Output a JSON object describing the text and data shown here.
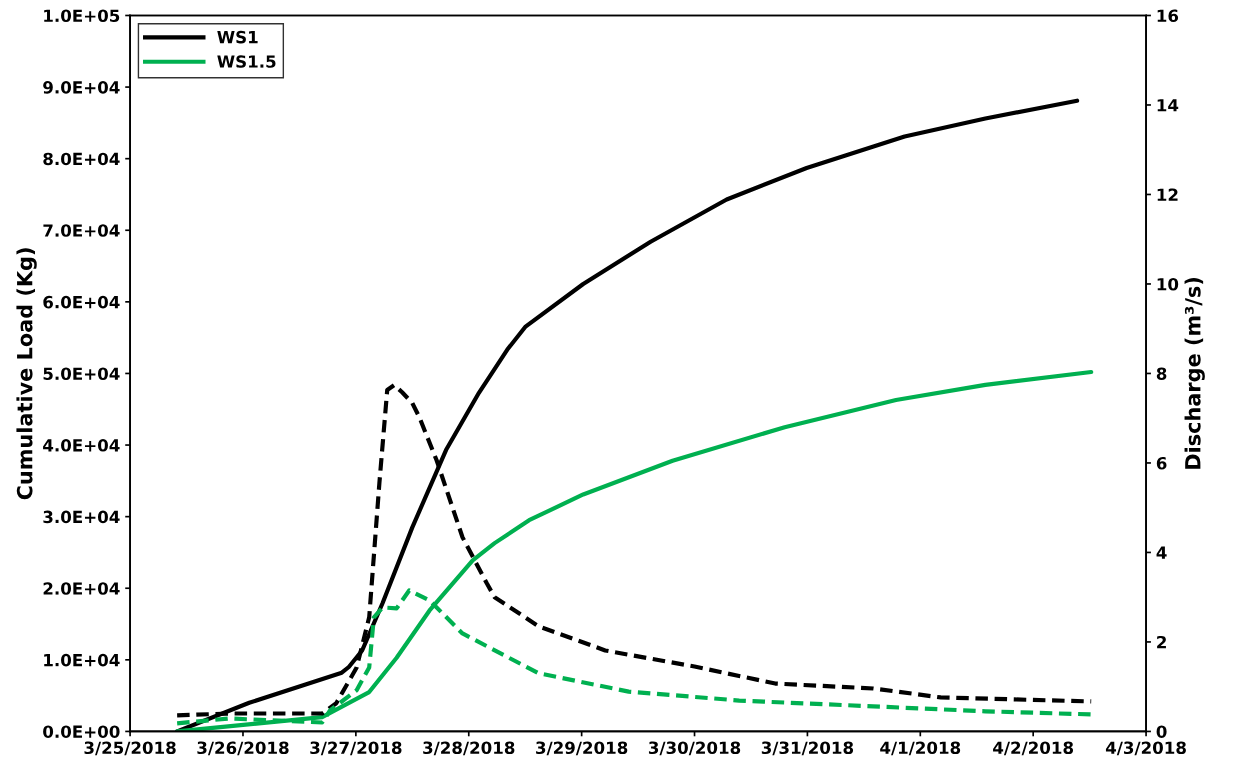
{
  "chart_data": {
    "type": "line",
    "xlabel": null,
    "ylabel": "Cumulative Load (Kg)",
    "y2label": "Discharge (m³/s)",
    "xlim": [
      "2018-03-25",
      "2018-04-03"
    ],
    "xticks": [
      {
        "value": "2018-03-25",
        "label": "3/25/2018"
      },
      {
        "value": "2018-03-26",
        "label": "3/26/2018"
      },
      {
        "value": "2018-03-27",
        "label": "3/27/2018"
      },
      {
        "value": "2018-03-28",
        "label": "3/28/2018"
      },
      {
        "value": "2018-03-29",
        "label": "3/29/2018"
      },
      {
        "value": "2018-03-30",
        "label": "3/30/2018"
      },
      {
        "value": "2018-03-31",
        "label": "3/31/2018"
      },
      {
        "value": "2018-04-01",
        "label": "4/1/2018"
      },
      {
        "value": "2018-04-02",
        "label": "4/2/2018"
      },
      {
        "value": "2018-04-03",
        "label": "4/3/2018"
      }
    ],
    "ylim": [
      0,
      100000
    ],
    "yticks": [
      {
        "value": 0,
        "label": "0.0E+00"
      },
      {
        "value": 10000,
        "label": "1.0E+04"
      },
      {
        "value": 20000,
        "label": "2.0E+04"
      },
      {
        "value": 30000,
        "label": "3.0E+04"
      },
      {
        "value": 40000,
        "label": "4.0E+04"
      },
      {
        "value": 50000,
        "label": "5.0E+04"
      },
      {
        "value": 60000,
        "label": "6.0E+04"
      },
      {
        "value": 70000,
        "label": "7.0E+04"
      },
      {
        "value": 80000,
        "label": "8.0E+04"
      },
      {
        "value": 90000,
        "label": "9.0E+04"
      },
      {
        "value": 100000,
        "label": "1.0E+05"
      }
    ],
    "y2lim": [
      0,
      16
    ],
    "y2ticks": [
      0,
      2,
      4,
      6,
      8,
      10,
      12,
      14,
      16
    ],
    "grid": false,
    "legend": "top left",
    "marker": "none",
    "series": [
      {
        "name": "WS1",
        "color": "#000000",
        "line_style": "solid",
        "x": [
          "2018-03-25T10:00",
          "2018-03-26T01:20",
          "2018-03-26T21:00",
          "2018-03-26T22:30",
          "2018-03-27T01:20",
          "2018-03-27T05:40",
          "2018-03-27T12:00",
          "2018-03-27T19:10",
          "2018-03-28T02:10",
          "2018-03-28T08:10",
          "2018-03-28T12:00",
          "2018-03-29T00:20",
          "2018-03-29T14:40",
          "2018-03-30T06:50",
          "2018-03-30T23:50",
          "2018-03-31T20:40",
          "2018-04-01T13:50",
          "2018-04-02T09:20"
        ],
        "values": [
          0,
          4000,
          8200,
          9000,
          11300,
          17900,
          28500,
          39300,
          47300,
          53300,
          56500,
          62500,
          68400,
          74300,
          78700,
          83100,
          85600,
          88100
        ]
      },
      {
        "name": "WS1.5",
        "color": "#00b050",
        "line_style": "solid",
        "x": [
          "2018-03-25T10:00",
          "2018-03-26T16:50",
          "2018-03-27T02:50",
          "2018-03-27T08:40",
          "2018-03-27T15:40",
          "2018-03-28T00:50",
          "2018-03-28T05:30",
          "2018-03-28T12:50",
          "2018-03-29T00:20",
          "2018-03-29T19:20",
          "2018-03-30T19:10",
          "2018-03-31T18:50",
          "2018-04-01T13:50",
          "2018-04-02T12:20"
        ],
        "values": [
          0,
          2000,
          5500,
          10300,
          16900,
          23900,
          26300,
          29500,
          33100,
          37800,
          42500,
          46300,
          48400,
          50200
        ]
      },
      {
        "color": "#000000",
        "line_style": "dashed",
        "axis": "y2",
        "x": [
          "2018-03-25T10:00",
          "2018-03-25T21:00",
          "2018-03-26T16:50",
          "2018-03-26T19:50",
          "2018-03-27T00:10",
          "2018-03-27T02:50",
          "2018-03-27T05:00",
          "2018-03-27T06:40",
          "2018-03-27T08:10",
          "2018-03-27T09:50",
          "2018-03-27T12:00",
          "2018-03-27T13:30",
          "2018-03-27T17:10",
          "2018-03-27T22:40",
          "2018-03-28T03:50",
          "2018-03-28T05:30",
          "2018-03-28T14:50",
          "2018-03-29T05:00",
          "2018-03-30T00:00",
          "2018-03-30T17:10",
          "2018-03-31T14:00",
          "2018-04-01T04:20",
          "2018-04-02T12:20"
        ],
        "values": [
          0.36,
          0.4,
          0.4,
          0.63,
          1.43,
          2.55,
          5.55,
          7.63,
          7.74,
          7.58,
          7.34,
          7.02,
          6.06,
          4.34,
          3.31,
          3.0,
          2.35,
          1.81,
          1.45,
          1.07,
          0.96,
          0.76,
          0.67
        ]
      },
      {
        "color": "#00b050",
        "line_style": "dashed",
        "axis": "y2",
        "x": [
          "2018-03-25T10:00",
          "2018-03-25T21:00",
          "2018-03-26T16:50",
          "2018-03-26T18:30",
          "2018-03-27T00:10",
          "2018-03-27T02:50",
          "2018-03-27T03:50",
          "2018-03-27T05:40",
          "2018-03-27T08:40",
          "2018-03-27T11:20",
          "2018-03-27T15:40",
          "2018-03-27T22:40",
          "2018-03-28T14:50",
          "2018-03-29T10:00",
          "2018-03-30T09:30",
          "2018-03-31T14:00",
          "2018-04-01T13:50",
          "2018-04-02T12:20"
        ],
        "values": [
          0.18,
          0.29,
          0.2,
          0.47,
          0.92,
          1.43,
          2.55,
          2.77,
          2.75,
          3.15,
          2.93,
          2.19,
          1.3,
          0.89,
          0.69,
          0.56,
          0.45,
          0.38
        ]
      }
    ]
  }
}
